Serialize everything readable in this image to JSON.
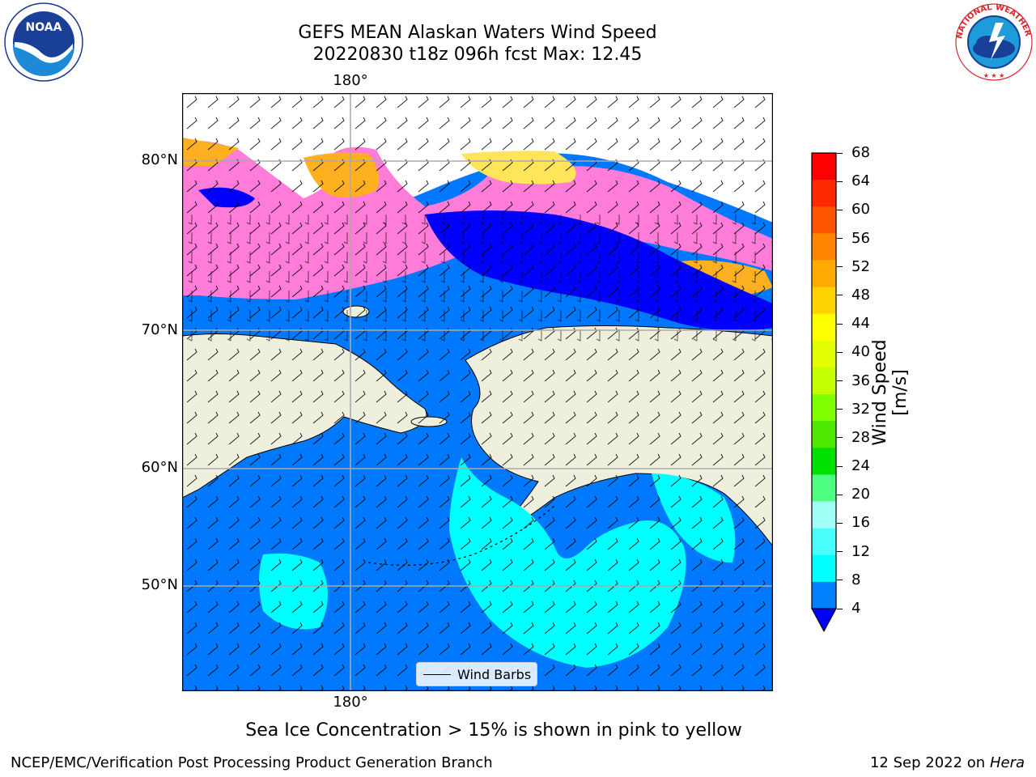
{
  "header": {
    "title_line1": "GEFS MEAN Alaskan Waters Wind Speed",
    "title_line2": "20220830 t18z 096h fcst   Max: 12.45"
  },
  "logos": {
    "noaa_text": "NOAA",
    "nws_ring_text": "NATIONAL WEATHER SERVICE"
  },
  "map": {
    "lon_labels": {
      "top": "180°",
      "bottom": "180°"
    },
    "lat_labels": [
      "80°N",
      "70°N",
      "60°N",
      "50°N"
    ],
    "colors": {
      "land": "#efefde",
      "ocean_4_8": "#0079ff",
      "ocean_8_12": "#00ffff",
      "ocean_under_4": "#0000ff",
      "ice_pink": "#ff7cd9",
      "ice_orange": "#ffb020",
      "ice_yellow": "#ffe55a"
    },
    "legend_label": "Wind Barbs"
  },
  "colorbar": {
    "label": "Wind Speed [m/s]",
    "ticks": [
      "68",
      "64",
      "60",
      "56",
      "52",
      "48",
      "44",
      "40",
      "36",
      "32",
      "28",
      "24",
      "20",
      "16",
      "12",
      "8",
      "4"
    ],
    "colors": [
      "#ff0000",
      "#ff2a00",
      "#ff5500",
      "#ff8400",
      "#ffaa00",
      "#ffd400",
      "#ffff00",
      "#e1ff00",
      "#c3ff00",
      "#80ff00",
      "#4ce800",
      "#00e100",
      "#4eff7f",
      "#a0fff7",
      "#4cffff",
      "#00ffff",
      "#007fff"
    ],
    "under_color": "#0000ff"
  },
  "footer": {
    "note": "Sea Ice Concentration > 15% is shown in pink to yellow",
    "left": "NCEP/EMC/Verification Post Processing Product Generation Branch",
    "right_date": "12 Sep 2022 on",
    "right_machine": "Hera"
  }
}
